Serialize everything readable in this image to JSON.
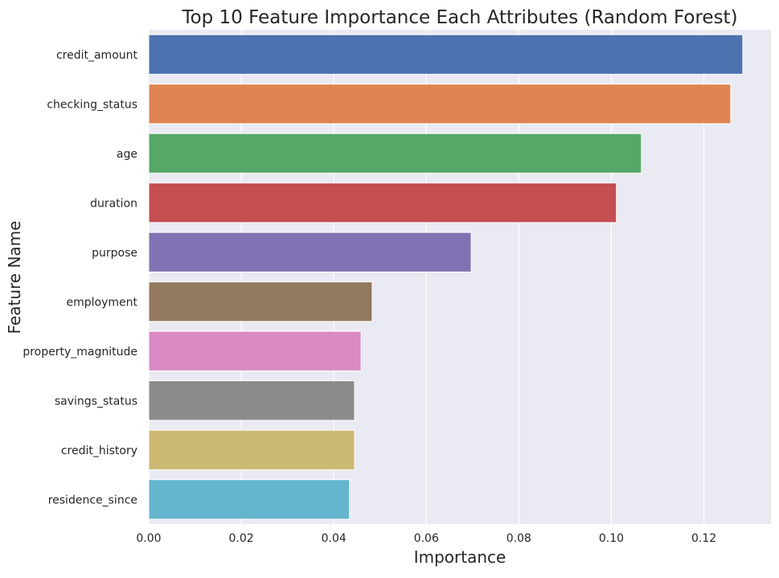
{
  "chart_data": {
    "type": "bar",
    "orientation": "horizontal",
    "title": "Top 10 Feature Importance Each Attributes (Random Forest)",
    "xlabel": "Importance",
    "ylabel": "Feature Name",
    "categories": [
      "credit_amount",
      "checking_status",
      "age",
      "duration",
      "purpose",
      "employment",
      "property_magnitude",
      "savings_status",
      "credit_history",
      "residence_since"
    ],
    "values": [
      0.1284,
      0.1258,
      0.1065,
      0.1011,
      0.0697,
      0.0483,
      0.0459,
      0.0445,
      0.0445,
      0.0434
    ],
    "colors": [
      "#4c72b0",
      "#dd8452",
      "#55a868",
      "#c44e52",
      "#8172b3",
      "#937860",
      "#da8bc3",
      "#8c8c8c",
      "#ccb974",
      "#64b5cd"
    ],
    "xlim": [
      0,
      0.1345
    ],
    "xticks": [
      0.0,
      0.02,
      0.04,
      0.06,
      0.08,
      0.1,
      0.12
    ],
    "xtick_labels": [
      "0.00",
      "0.02",
      "0.04",
      "0.06",
      "0.08",
      "0.10",
      "0.12"
    ],
    "grid": true,
    "background": "#eaeaf2"
  }
}
